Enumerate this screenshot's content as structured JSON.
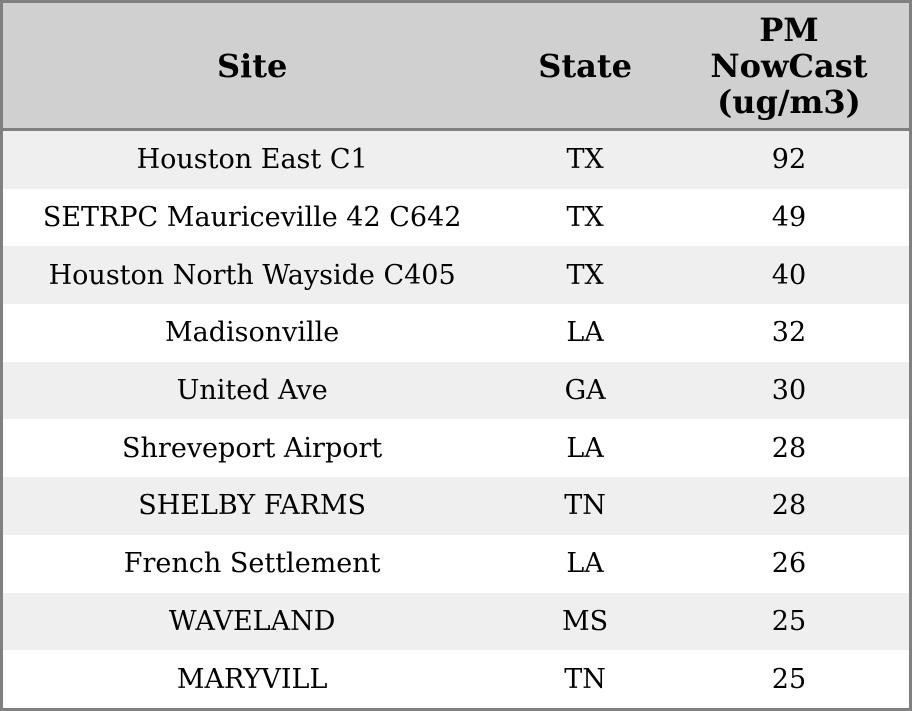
{
  "header": {
    "site": "Site",
    "state": "State",
    "pm": "PM\nNowCast\n(ug/m3)"
  },
  "chart_data": {
    "type": "table",
    "columns": [
      "Site",
      "State",
      "PM NowCast (ug/m3)"
    ],
    "rows": [
      {
        "site": "Houston East C1",
        "state": "TX",
        "pm_nowcast": 92
      },
      {
        "site": "SETRPC Mauriceville 42 C642",
        "state": "TX",
        "pm_nowcast": 49
      },
      {
        "site": "Houston North Wayside C405",
        "state": "TX",
        "pm_nowcast": 40
      },
      {
        "site": "Madisonville",
        "state": "LA",
        "pm_nowcast": 32
      },
      {
        "site": "United Ave",
        "state": "GA",
        "pm_nowcast": 30
      },
      {
        "site": "Shreveport Airport",
        "state": "LA",
        "pm_nowcast": 28
      },
      {
        "site": "SHELBY FARMS",
        "state": "TN",
        "pm_nowcast": 28
      },
      {
        "site": "French Settlement",
        "state": "LA",
        "pm_nowcast": 26
      },
      {
        "site": "WAVELAND",
        "state": "MS",
        "pm_nowcast": 25
      },
      {
        "site": "MARYVILL",
        "state": "TN",
        "pm_nowcast": 25
      }
    ],
    "layout": {
      "grid": false,
      "row_striping": true
    }
  },
  "colors": {
    "border": "#808080",
    "header_bg": "#d0d0d0",
    "row_odd_bg": "#efefef",
    "row_even_bg": "#ffffff",
    "text": "#000000"
  }
}
